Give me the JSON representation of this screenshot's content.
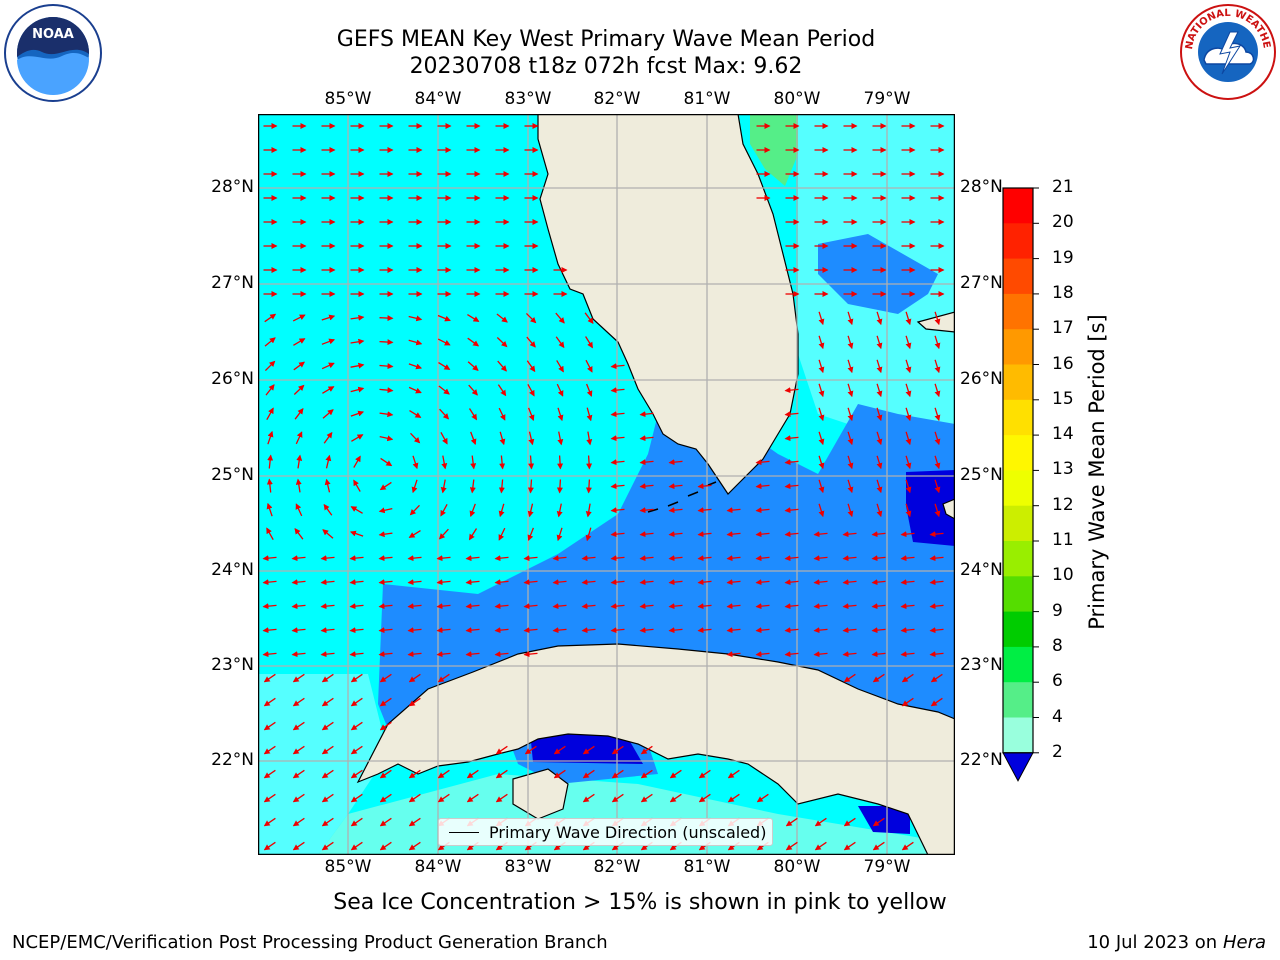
{
  "title_line1": "GEFS MEAN Key West Primary Wave Mean Period",
  "title_line2": "20230708 t18z 072h fcst   Max: 9.62",
  "lon_ticks": [
    "85°W",
    "84°W",
    "83°W",
    "82°W",
    "81°W",
    "80°W",
    "79°W"
  ],
  "lat_ticks": [
    "28°N",
    "27°N",
    "26°N",
    "25°N",
    "24°N",
    "23°N",
    "22°N"
  ],
  "legend_label": "Primary Wave Direction (unscaled)",
  "colorbar": {
    "label": "Primary Wave Mean Period [s]",
    "ticks": [
      "21",
      "20",
      "19",
      "18",
      "17",
      "16",
      "15",
      "14",
      "13",
      "12",
      "11",
      "10",
      "9",
      "8",
      "6",
      "4",
      "2"
    ],
    "colors": [
      "#ff0000",
      "#ff2200",
      "#ff4a00",
      "#ff7300",
      "#ff9900",
      "#ffbb00",
      "#ffe000",
      "#fff700",
      "#eeff00",
      "#ccee00",
      "#99ee00",
      "#55dd00",
      "#00cc00",
      "#00ee44",
      "#55ee88",
      "#99ffdd",
      "#55ffff",
      "#00ffff",
      "#00ccff",
      "#0066ee",
      "#0000dd"
    ]
  },
  "note": "Sea Ice Concentration > 15% is shown in pink to yellow",
  "footer_left": "NCEP/EMC/Verification Post Processing Product Generation Branch",
  "footer_right_date": "10 Jul 2023 on",
  "footer_right_host": "Hera",
  "logos": {
    "left": "NOAA",
    "right": "NATIONAL WEATHER SERVICE"
  },
  "colors": {
    "land": "#efecdc",
    "period_cyan": "#00ffff",
    "period_light": "#55ffff",
    "period_mid": "#1e8cff",
    "period_dark": "#0000dd",
    "period_green": "#55ee88",
    "arrow": "#ee0000",
    "grid": "#b0b0b0"
  }
}
